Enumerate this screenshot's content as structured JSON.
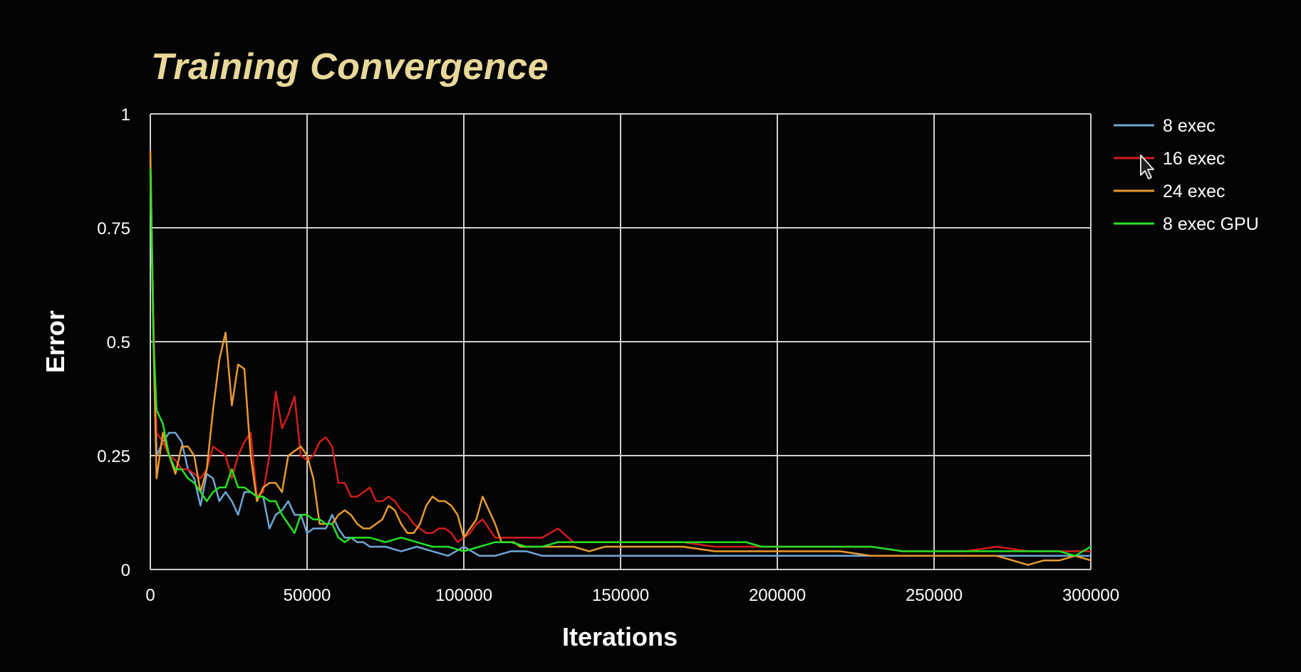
{
  "chart_data": {
    "type": "line",
    "title": "Training Convergence",
    "xlabel": "Iterations",
    "ylabel": "Error",
    "xlim": [
      0,
      300000
    ],
    "ylim": [
      0,
      1
    ],
    "xticks": [
      0,
      50000,
      100000,
      150000,
      200000,
      250000,
      300000
    ],
    "xtick_labels": [
      "0",
      "50000",
      "100000",
      "150000",
      "200000",
      "250000",
      "300000"
    ],
    "yticks": [
      0,
      0.25,
      0.5,
      0.75,
      1
    ],
    "ytick_labels": [
      "0",
      "0.25",
      "0.5",
      "0.75",
      "1"
    ],
    "grid": true,
    "legend_position": "right",
    "series": [
      {
        "name": "8 exec",
        "color": "#6fa6d6",
        "x": [
          0,
          1000,
          2000,
          4000,
          6000,
          8000,
          10000,
          12000,
          14000,
          16000,
          18000,
          20000,
          22000,
          24000,
          26000,
          28000,
          30000,
          32000,
          34000,
          36000,
          38000,
          40000,
          42000,
          44000,
          46000,
          48000,
          50000,
          52000,
          54000,
          56000,
          58000,
          60000,
          62000,
          64000,
          66000,
          68000,
          70000,
          75000,
          80000,
          85000,
          90000,
          95000,
          100000,
          105000,
          110000,
          115000,
          120000,
          125000,
          130000,
          140000,
          150000,
          160000,
          170000,
          180000,
          190000,
          200000,
          210000,
          220000,
          230000,
          240000,
          250000,
          260000,
          270000,
          280000,
          290000,
          300000
        ],
        "y": [
          0.9,
          0.55,
          0.25,
          0.28,
          0.3,
          0.3,
          0.28,
          0.22,
          0.2,
          0.14,
          0.21,
          0.2,
          0.15,
          0.17,
          0.15,
          0.12,
          0.17,
          0.17,
          0.16,
          0.16,
          0.09,
          0.12,
          0.13,
          0.15,
          0.12,
          0.12,
          0.08,
          0.09,
          0.09,
          0.09,
          0.12,
          0.09,
          0.07,
          0.07,
          0.06,
          0.06,
          0.05,
          0.05,
          0.04,
          0.05,
          0.04,
          0.03,
          0.05,
          0.03,
          0.03,
          0.04,
          0.04,
          0.03,
          0.03,
          0.03,
          0.03,
          0.03,
          0.03,
          0.03,
          0.03,
          0.03,
          0.03,
          0.03,
          0.03,
          0.03,
          0.03,
          0.03,
          0.03,
          0.03,
          0.03,
          0.03
        ]
      },
      {
        "name": "16 exec",
        "color": "#d41c1c",
        "x": [
          0,
          1000,
          2000,
          4000,
          6000,
          8000,
          10000,
          12000,
          14000,
          16000,
          18000,
          20000,
          22000,
          24000,
          26000,
          28000,
          30000,
          32000,
          34000,
          36000,
          38000,
          40000,
          42000,
          44000,
          46000,
          48000,
          50000,
          52000,
          54000,
          56000,
          58000,
          60000,
          62000,
          64000,
          66000,
          68000,
          70000,
          72000,
          74000,
          76000,
          78000,
          80000,
          82000,
          84000,
          86000,
          88000,
          90000,
          92000,
          94000,
          96000,
          98000,
          100000,
          102000,
          104000,
          106000,
          108000,
          110000,
          112000,
          114000,
          116000,
          118000,
          120000,
          125000,
          130000,
          135000,
          140000,
          145000,
          150000,
          155000,
          160000,
          170000,
          180000,
          190000,
          200000,
          210000,
          220000,
          230000,
          240000,
          250000,
          260000,
          270000,
          280000,
          290000,
          300000
        ],
        "y": [
          0.86,
          0.55,
          0.3,
          0.28,
          0.25,
          0.24,
          0.22,
          0.22,
          0.21,
          0.2,
          0.22,
          0.27,
          0.26,
          0.25,
          0.2,
          0.25,
          0.28,
          0.3,
          0.16,
          0.17,
          0.25,
          0.39,
          0.31,
          0.34,
          0.38,
          0.25,
          0.24,
          0.25,
          0.28,
          0.29,
          0.27,
          0.19,
          0.19,
          0.16,
          0.16,
          0.17,
          0.18,
          0.15,
          0.15,
          0.16,
          0.15,
          0.13,
          0.12,
          0.1,
          0.09,
          0.08,
          0.08,
          0.09,
          0.09,
          0.08,
          0.06,
          0.07,
          0.08,
          0.1,
          0.11,
          0.09,
          0.07,
          0.07,
          0.07,
          0.07,
          0.07,
          0.07,
          0.07,
          0.09,
          0.06,
          0.06,
          0.06,
          0.06,
          0.06,
          0.06,
          0.06,
          0.05,
          0.05,
          0.05,
          0.05,
          0.05,
          0.05,
          0.04,
          0.04,
          0.04,
          0.05,
          0.04,
          0.04,
          0.04
        ]
      },
      {
        "name": "24 exec",
        "color": "#e89a2e",
        "x": [
          0,
          1000,
          2000,
          4000,
          6000,
          8000,
          10000,
          12000,
          14000,
          16000,
          18000,
          20000,
          22000,
          24000,
          26000,
          28000,
          30000,
          32000,
          34000,
          36000,
          38000,
          40000,
          42000,
          44000,
          46000,
          48000,
          50000,
          52000,
          54000,
          56000,
          58000,
          60000,
          62000,
          64000,
          66000,
          68000,
          70000,
          72000,
          74000,
          76000,
          78000,
          80000,
          82000,
          84000,
          86000,
          88000,
          90000,
          92000,
          94000,
          96000,
          98000,
          100000,
          102000,
          104000,
          106000,
          108000,
          110000,
          112000,
          114000,
          116000,
          118000,
          120000,
          125000,
          130000,
          135000,
          140000,
          145000,
          150000,
          160000,
          170000,
          180000,
          190000,
          200000,
          210000,
          220000,
          230000,
          240000,
          250000,
          260000,
          270000,
          275000,
          280000,
          285000,
          290000,
          295000,
          300000
        ],
        "y": [
          0.92,
          0.5,
          0.2,
          0.3,
          0.25,
          0.21,
          0.27,
          0.27,
          0.25,
          0.17,
          0.22,
          0.35,
          0.46,
          0.52,
          0.36,
          0.45,
          0.44,
          0.25,
          0.15,
          0.18,
          0.19,
          0.19,
          0.17,
          0.25,
          0.26,
          0.27,
          0.25,
          0.2,
          0.1,
          0.1,
          0.1,
          0.12,
          0.13,
          0.12,
          0.1,
          0.09,
          0.09,
          0.1,
          0.11,
          0.14,
          0.13,
          0.1,
          0.08,
          0.08,
          0.1,
          0.14,
          0.16,
          0.15,
          0.15,
          0.14,
          0.12,
          0.07,
          0.09,
          0.11,
          0.16,
          0.13,
          0.1,
          0.06,
          0.06,
          0.06,
          0.05,
          0.05,
          0.05,
          0.05,
          0.05,
          0.04,
          0.05,
          0.05,
          0.05,
          0.05,
          0.04,
          0.04,
          0.04,
          0.04,
          0.04,
          0.03,
          0.03,
          0.03,
          0.03,
          0.03,
          0.02,
          0.01,
          0.02,
          0.02,
          0.03,
          0.02
        ]
      },
      {
        "name": "8 exec GPU",
        "color": "#23e323",
        "x": [
          0,
          1000,
          2000,
          4000,
          6000,
          8000,
          10000,
          12000,
          14000,
          16000,
          18000,
          20000,
          22000,
          24000,
          26000,
          28000,
          30000,
          32000,
          34000,
          36000,
          38000,
          40000,
          42000,
          44000,
          46000,
          48000,
          50000,
          52000,
          54000,
          56000,
          58000,
          60000,
          62000,
          64000,
          66000,
          68000,
          70000,
          75000,
          80000,
          85000,
          90000,
          95000,
          100000,
          105000,
          110000,
          115000,
          120000,
          125000,
          130000,
          140000,
          150000,
          160000,
          170000,
          180000,
          190000,
          195000,
          200000,
          210000,
          220000,
          230000,
          240000,
          250000,
          260000,
          270000,
          280000,
          290000,
          295000,
          300000
        ],
        "y": [
          0.88,
          0.5,
          0.35,
          0.32,
          0.25,
          0.22,
          0.22,
          0.2,
          0.19,
          0.17,
          0.15,
          0.17,
          0.18,
          0.18,
          0.22,
          0.18,
          0.18,
          0.17,
          0.16,
          0.16,
          0.15,
          0.15,
          0.12,
          0.1,
          0.08,
          0.12,
          0.12,
          0.11,
          0.11,
          0.1,
          0.1,
          0.07,
          0.06,
          0.07,
          0.07,
          0.07,
          0.07,
          0.06,
          0.07,
          0.06,
          0.05,
          0.05,
          0.04,
          0.05,
          0.06,
          0.06,
          0.05,
          0.05,
          0.06,
          0.06,
          0.06,
          0.06,
          0.06,
          0.06,
          0.06,
          0.05,
          0.05,
          0.05,
          0.05,
          0.05,
          0.04,
          0.04,
          0.04,
          0.04,
          0.04,
          0.04,
          0.03,
          0.05
        ]
      }
    ]
  }
}
